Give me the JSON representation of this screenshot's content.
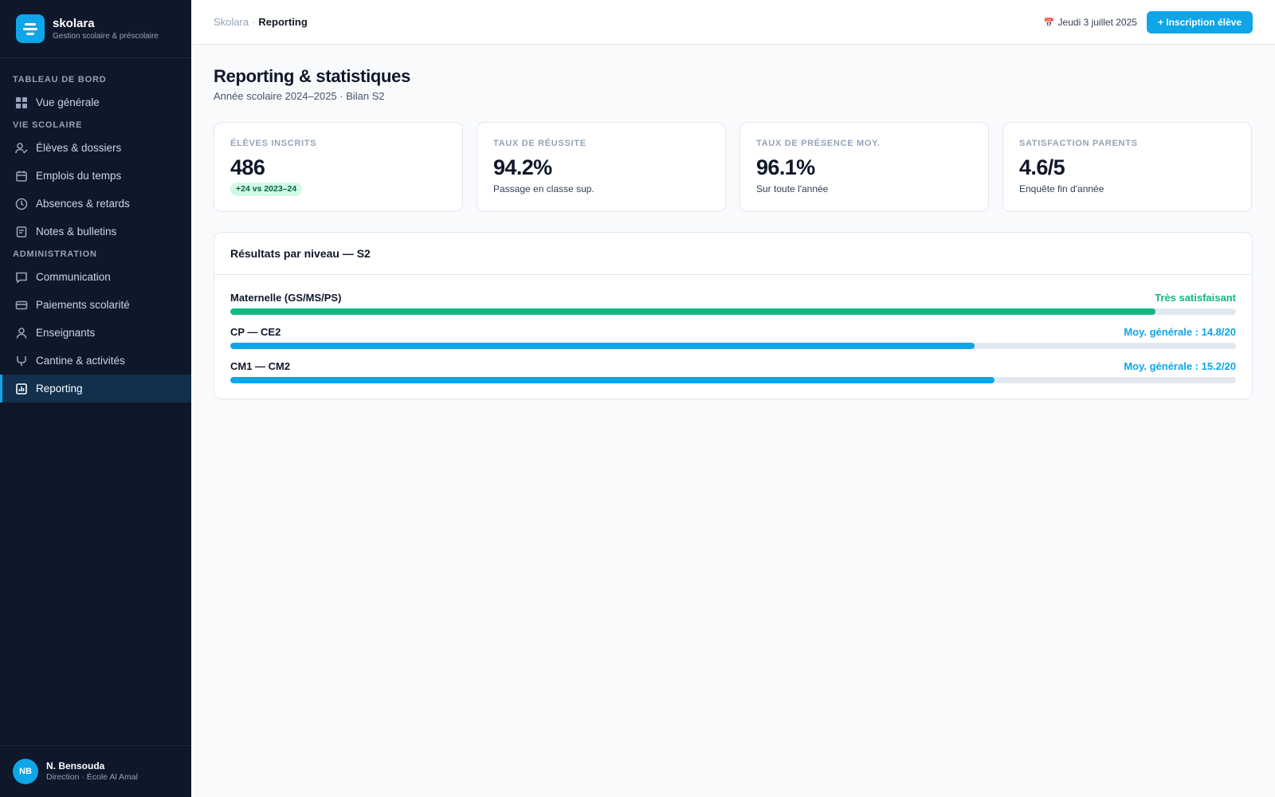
{
  "brand": {
    "name": "skolara",
    "tagline": "Gestion scolaire & préscolaire"
  },
  "sidebar": {
    "sections": [
      {
        "title": "TABLEAU DE BORD",
        "items": [
          {
            "label": "Vue générale",
            "icon": "grid-icon"
          }
        ]
      },
      {
        "title": "VIE SCOLAIRE",
        "items": [
          {
            "label": "Élèves & dossiers",
            "icon": "user-check-icon"
          },
          {
            "label": "Emplois du temps",
            "icon": "calendar-icon"
          },
          {
            "label": "Absences & retards",
            "icon": "clock-icon"
          },
          {
            "label": "Notes & bulletins",
            "icon": "report-card-icon"
          }
        ]
      },
      {
        "title": "ADMINISTRATION",
        "items": [
          {
            "label": "Communication",
            "icon": "chat-icon"
          },
          {
            "label": "Paiements scolarité",
            "icon": "credit-card-icon"
          },
          {
            "label": "Enseignants",
            "icon": "user-icon"
          },
          {
            "label": "Cantine & activités",
            "icon": "utensils-icon"
          },
          {
            "label": "Reporting",
            "icon": "chart-icon",
            "active": true
          }
        ]
      }
    ]
  },
  "user": {
    "initials": "NB",
    "name": "N. Bensouda",
    "role": "Direction · École Al Amal"
  },
  "header": {
    "breadcrumb": {
      "root": "Skolara",
      "separator": "·",
      "current": "Reporting"
    },
    "date": "Jeudi 3 juillet 2025",
    "date_icon": "📅",
    "primary_button": "+ Inscription élève"
  },
  "page": {
    "title": "Reporting & statistiques",
    "subtitle": "Année scolaire 2024–2025 · Bilan S2"
  },
  "kpis": [
    {
      "label": "ÉLÈVES INSCRITS",
      "value": "486",
      "badge": "+24 vs 2023–24"
    },
    {
      "label": "TAUX DE RÉUSSITE",
      "value": "94.2%",
      "note": "Passage en classe sup."
    },
    {
      "label": "TAUX DE PRÉSENCE MOY.",
      "value": "96.1%",
      "note": "Sur toute l'année"
    },
    {
      "label": "SATISFACTION PARENTS",
      "value": "4.6/5",
      "note": "Enquête fin d'année"
    }
  ],
  "results": {
    "title": "Résultats par niveau — S2",
    "rows": [
      {
        "label": "Maternelle (GS/MS/PS)",
        "status": "Très satisfaisant",
        "progress": 0.92,
        "color": "#10b981"
      },
      {
        "label": "CP — CE2",
        "status": "Moy. générale : 14.8/20",
        "progress": 0.74,
        "color": "#0ea5e9"
      },
      {
        "label": "CM1 — CM2",
        "status": "Moy. générale : 15.2/20",
        "progress": 0.76,
        "color": "#0ea5e9"
      }
    ]
  }
}
